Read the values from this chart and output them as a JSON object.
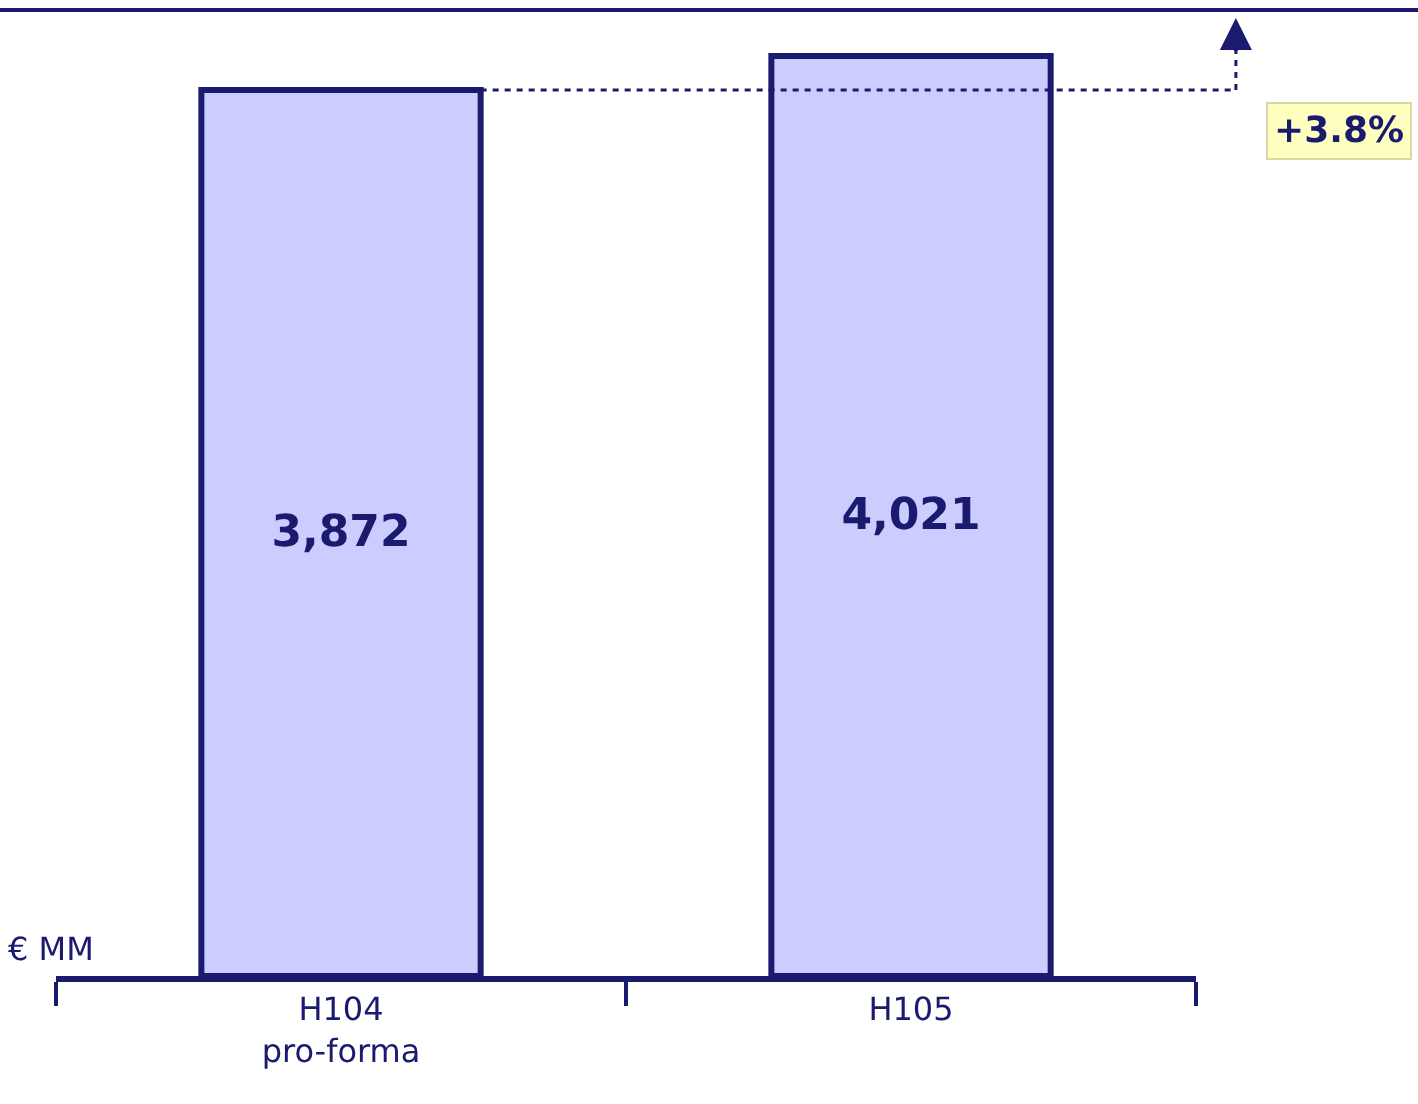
{
  "chart_data": {
    "type": "bar",
    "categories": [
      "H104\npro-forma",
      "H105"
    ],
    "values": [
      3872,
      4021
    ],
    "value_labels": [
      "3,872",
      "4,021"
    ],
    "color": "#ccccff",
    "annotations": [
      "+3.8%",
      "€ MM"
    ]
  }
}
